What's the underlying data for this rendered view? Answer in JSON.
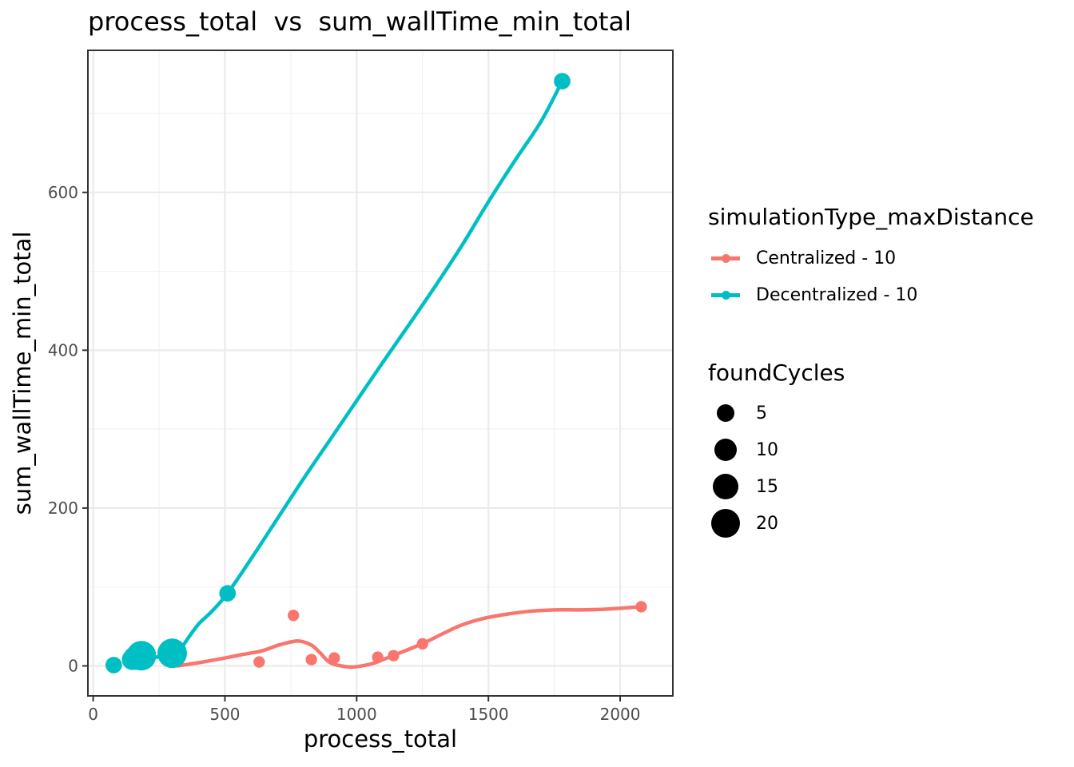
{
  "chart_data": {
    "type": "scatter",
    "title": "process_total  vs  sum_wallTime_min_total",
    "xlabel": "process_total",
    "ylabel": "sum_wallTime_min_total",
    "xlim": [
      -20,
      2200
    ],
    "ylim": [
      -38,
      780
    ],
    "x_ticks": [
      0,
      500,
      1000,
      1500,
      2000
    ],
    "y_ticks": [
      0,
      200,
      400,
      600
    ],
    "grid": true,
    "legend_position": "right",
    "series": [
      {
        "name": "Centralized - 10",
        "color": "#F8766D",
        "points": [
          {
            "x": 630,
            "y": 5,
            "size": 1
          },
          {
            "x": 760,
            "y": 64,
            "size": 1
          },
          {
            "x": 828,
            "y": 8,
            "size": 1
          },
          {
            "x": 915,
            "y": 10,
            "size": 1
          },
          {
            "x": 1080,
            "y": 11,
            "size": 1
          },
          {
            "x": 1140,
            "y": 13,
            "size": 1
          },
          {
            "x": 1250,
            "y": 28,
            "size": 1
          },
          {
            "x": 2080,
            "y": 75,
            "size": 1
          }
        ],
        "smooth": [
          [
            320,
            0
          ],
          [
            400,
            4
          ],
          [
            500,
            10
          ],
          [
            560,
            14
          ],
          [
            640,
            19
          ],
          [
            700,
            26
          ],
          [
            760,
            31
          ],
          [
            790,
            31
          ],
          [
            830,
            26
          ],
          [
            860,
            17
          ],
          [
            900,
            4
          ],
          [
            960,
            -1
          ],
          [
            1000,
            -1
          ],
          [
            1060,
            3
          ],
          [
            1100,
            8
          ],
          [
            1160,
            16
          ],
          [
            1220,
            24
          ],
          [
            1280,
            33
          ],
          [
            1340,
            43
          ],
          [
            1400,
            52
          ],
          [
            1480,
            60
          ],
          [
            1560,
            65
          ],
          [
            1650,
            69
          ],
          [
            1750,
            71
          ],
          [
            1850,
            71
          ],
          [
            1950,
            72
          ],
          [
            2080,
            75
          ]
        ]
      },
      {
        "name": "Decentralized - 10",
        "color": "#00BFC4",
        "points": [
          {
            "x": 78,
            "y": 1,
            "size": 4
          },
          {
            "x": 148,
            "y": 8,
            "size": 8
          },
          {
            "x": 160,
            "y": 10,
            "size": 12
          },
          {
            "x": 183,
            "y": 13,
            "size": 21
          },
          {
            "x": 300,
            "y": 16,
            "size": 21
          },
          {
            "x": 510,
            "y": 92,
            "size": 4
          },
          {
            "x": 1780,
            "y": 741,
            "size": 4
          }
        ],
        "smooth": [
          [
            140,
            2
          ],
          [
            170,
            5
          ],
          [
            200,
            8
          ],
          [
            240,
            11
          ],
          [
            300,
            15
          ],
          [
            330,
            21
          ],
          [
            360,
            35
          ],
          [
            400,
            53
          ],
          [
            450,
            69
          ],
          [
            510,
            92
          ],
          [
            600,
            136
          ],
          [
            700,
            187
          ],
          [
            800,
            238
          ],
          [
            900,
            287
          ],
          [
            1000,
            336
          ],
          [
            1100,
            385
          ],
          [
            1200,
            433
          ],
          [
            1300,
            482
          ],
          [
            1400,
            533
          ],
          [
            1500,
            588
          ],
          [
            1600,
            640
          ],
          [
            1700,
            690
          ],
          [
            1780,
            741
          ]
        ]
      }
    ]
  },
  "legend": {
    "color_title": "simulationType_maxDistance",
    "color_items": [
      {
        "label": "Centralized - 10",
        "color": "#F8766D"
      },
      {
        "label": "Decentralized - 10",
        "color": "#00BFC4"
      }
    ],
    "size_title": "foundCycles",
    "size_items": [
      {
        "label": "5",
        "value": 5
      },
      {
        "label": "10",
        "value": 10
      },
      {
        "label": "15",
        "value": 15
      },
      {
        "label": "20",
        "value": 20
      }
    ]
  }
}
